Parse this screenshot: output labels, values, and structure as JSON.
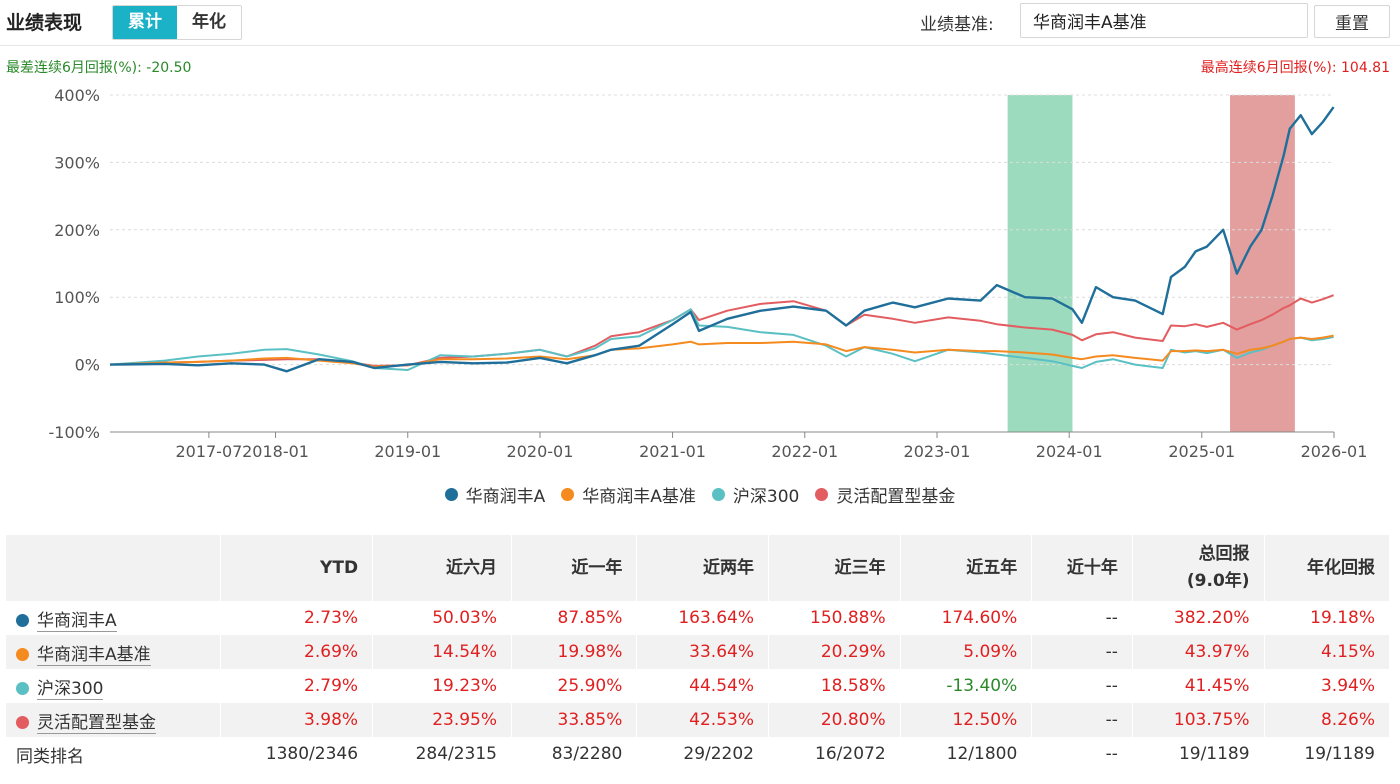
{
  "header": {
    "title": "业绩表现",
    "tabs": [
      {
        "label": "累计",
        "active": true
      },
      {
        "label": "年化",
        "active": false
      }
    ],
    "benchmark_label": "业绩基准:",
    "benchmark_value": "华商润丰A基准",
    "reset_label": "重置"
  },
  "stats": {
    "worst": "最差连续6月回报(%): -20.50",
    "best": "最高连续6月回报(%): 104.81"
  },
  "colors": {
    "fund": "#1f6f9a",
    "benchmark": "#f58a1f",
    "hs300": "#5bc0c4",
    "flex": "#e25c60",
    "worst_band": "#7ccfa8",
    "best_band": "#d46a6a",
    "positive": "#e02020",
    "negative": "#2a8a2a"
  },
  "chart_data": {
    "type": "line",
    "ylabel": "",
    "ylim": [
      -100,
      400
    ],
    "yticks": [
      -100,
      0,
      100,
      200,
      300,
      400
    ],
    "ytick_labels": [
      "-100%",
      "0%",
      "100%",
      "200%",
      "300%",
      "400%"
    ],
    "xlim": [
      "2016-10-01",
      "2026-01-01"
    ],
    "xticks": [
      {
        "date": "2017-07-01",
        "label": "2017-07"
      },
      {
        "date": "2018-01-01",
        "label": "2018-01"
      },
      {
        "date": "2019-01-01",
        "label": "2019-01"
      },
      {
        "date": "2020-01-01",
        "label": "2020-01"
      },
      {
        "date": "2021-01-01",
        "label": "2021-01"
      },
      {
        "date": "2022-01-01",
        "label": "2022-01"
      },
      {
        "date": "2023-01-01",
        "label": "2023-01"
      },
      {
        "date": "2024-01-01",
        "label": "2024-01"
      },
      {
        "date": "2025-01-01",
        "label": "2025-01"
      },
      {
        "date": "2026-01-01",
        "label": "2026-01"
      }
    ],
    "shaded_periods": [
      {
        "kind": "worst",
        "start": "2023-07-15",
        "end": "2024-01-10"
      },
      {
        "kind": "best",
        "start": "2025-03-20",
        "end": "2025-09-15"
      }
    ],
    "series": [
      {
        "name": "华商润丰A",
        "color_key": "fund",
        "points": [
          [
            "2016-10-01",
            0
          ],
          [
            "2017-03-01",
            1
          ],
          [
            "2017-06-01",
            -1
          ],
          [
            "2017-09-01",
            2
          ],
          [
            "2017-12-01",
            0
          ],
          [
            "2018-02-01",
            -10
          ],
          [
            "2018-05-01",
            8
          ],
          [
            "2018-08-01",
            4
          ],
          [
            "2018-10-01",
            -5
          ],
          [
            "2019-01-01",
            0
          ],
          [
            "2019-04-01",
            4
          ],
          [
            "2019-07-01",
            2
          ],
          [
            "2019-10-01",
            3
          ],
          [
            "2020-01-01",
            10
          ],
          [
            "2020-03-15",
            2
          ],
          [
            "2020-06-01",
            14
          ],
          [
            "2020-07-15",
            22
          ],
          [
            "2020-10-01",
            28
          ],
          [
            "2021-01-01",
            60
          ],
          [
            "2021-02-20",
            78
          ],
          [
            "2021-03-15",
            50
          ],
          [
            "2021-06-01",
            68
          ],
          [
            "2021-09-01",
            80
          ],
          [
            "2021-12-01",
            86
          ],
          [
            "2022-03-01",
            80
          ],
          [
            "2022-04-25",
            58
          ],
          [
            "2022-06-15",
            80
          ],
          [
            "2022-09-01",
            92
          ],
          [
            "2022-11-01",
            85
          ],
          [
            "2023-02-01",
            98
          ],
          [
            "2023-05-01",
            95
          ],
          [
            "2023-06-15",
            118
          ],
          [
            "2023-09-01",
            100
          ],
          [
            "2023-11-15",
            98
          ],
          [
            "2024-01-10",
            82
          ],
          [
            "2024-02-05",
            62
          ],
          [
            "2024-03-15",
            115
          ],
          [
            "2024-05-01",
            100
          ],
          [
            "2024-07-01",
            95
          ],
          [
            "2024-09-15",
            75
          ],
          [
            "2024-10-08",
            130
          ],
          [
            "2024-11-15",
            145
          ],
          [
            "2024-12-15",
            168
          ],
          [
            "2025-01-15",
            175
          ],
          [
            "2025-03-01",
            200
          ],
          [
            "2025-04-08",
            135
          ],
          [
            "2025-05-15",
            175
          ],
          [
            "2025-06-15",
            200
          ],
          [
            "2025-07-15",
            250
          ],
          [
            "2025-08-15",
            310
          ],
          [
            "2025-09-01",
            350
          ],
          [
            "2025-10-01",
            370
          ],
          [
            "2025-11-01",
            342
          ],
          [
            "2025-12-01",
            360
          ],
          [
            "2025-12-31",
            382
          ]
        ]
      },
      {
        "name": "华商润丰A基准",
        "color_key": "benchmark",
        "points": [
          [
            "2016-10-01",
            0
          ],
          [
            "2017-03-01",
            3
          ],
          [
            "2017-06-01",
            4
          ],
          [
            "2017-09-01",
            6
          ],
          [
            "2017-12-01",
            9
          ],
          [
            "2018-02-01",
            10
          ],
          [
            "2018-05-01",
            6
          ],
          [
            "2018-08-01",
            2
          ],
          [
            "2018-10-01",
            -3
          ],
          [
            "2019-01-01",
            -1
          ],
          [
            "2019-04-01",
            8
          ],
          [
            "2019-07-01",
            8
          ],
          [
            "2019-10-01",
            9
          ],
          [
            "2020-01-01",
            12
          ],
          [
            "2020-03-15",
            8
          ],
          [
            "2020-06-01",
            14
          ],
          [
            "2020-07-15",
            22
          ],
          [
            "2020-10-01",
            24
          ],
          [
            "2021-01-01",
            30
          ],
          [
            "2021-02-20",
            34
          ],
          [
            "2021-03-15",
            30
          ],
          [
            "2021-06-01",
            32
          ],
          [
            "2021-09-01",
            32
          ],
          [
            "2021-12-01",
            34
          ],
          [
            "2022-03-01",
            30
          ],
          [
            "2022-04-25",
            20
          ],
          [
            "2022-06-15",
            26
          ],
          [
            "2022-09-01",
            22
          ],
          [
            "2022-11-01",
            18
          ],
          [
            "2023-02-01",
            22
          ],
          [
            "2023-05-01",
            20
          ],
          [
            "2023-06-15",
            20
          ],
          [
            "2023-09-01",
            18
          ],
          [
            "2023-11-15",
            15
          ],
          [
            "2024-01-10",
            10
          ],
          [
            "2024-02-05",
            8
          ],
          [
            "2024-03-15",
            12
          ],
          [
            "2024-05-01",
            14
          ],
          [
            "2024-07-01",
            10
          ],
          [
            "2024-09-15",
            6
          ],
          [
            "2024-10-08",
            20
          ],
          [
            "2024-11-15",
            20
          ],
          [
            "2024-12-15",
            21
          ],
          [
            "2025-01-15",
            20
          ],
          [
            "2025-03-01",
            22
          ],
          [
            "2025-04-08",
            16
          ],
          [
            "2025-05-15",
            22
          ],
          [
            "2025-06-15",
            24
          ],
          [
            "2025-07-15",
            28
          ],
          [
            "2025-08-15",
            34
          ],
          [
            "2025-09-01",
            38
          ],
          [
            "2025-10-01",
            40
          ],
          [
            "2025-11-01",
            38
          ],
          [
            "2025-12-01",
            40
          ],
          [
            "2025-12-31",
            43
          ]
        ]
      },
      {
        "name": "沪深300",
        "color_key": "hs300",
        "points": [
          [
            "2016-10-01",
            0
          ],
          [
            "2017-03-01",
            6
          ],
          [
            "2017-06-01",
            12
          ],
          [
            "2017-09-01",
            16
          ],
          [
            "2017-12-01",
            22
          ],
          [
            "2018-02-01",
            23
          ],
          [
            "2018-05-01",
            15
          ],
          [
            "2018-08-01",
            5
          ],
          [
            "2018-10-01",
            -5
          ],
          [
            "2019-01-01",
            -8
          ],
          [
            "2019-04-01",
            14
          ],
          [
            "2019-07-01",
            12
          ],
          [
            "2019-10-01",
            16
          ],
          [
            "2020-01-01",
            22
          ],
          [
            "2020-03-15",
            12
          ],
          [
            "2020-06-01",
            24
          ],
          [
            "2020-07-15",
            38
          ],
          [
            "2020-10-01",
            42
          ],
          [
            "2021-01-01",
            66
          ],
          [
            "2021-02-20",
            82
          ],
          [
            "2021-03-15",
            58
          ],
          [
            "2021-06-01",
            56
          ],
          [
            "2021-09-01",
            48
          ],
          [
            "2021-12-01",
            44
          ],
          [
            "2022-03-01",
            28
          ],
          [
            "2022-04-25",
            12
          ],
          [
            "2022-06-15",
            26
          ],
          [
            "2022-09-01",
            16
          ],
          [
            "2022-11-01",
            5
          ],
          [
            "2023-02-01",
            22
          ],
          [
            "2023-05-01",
            18
          ],
          [
            "2023-06-15",
            15
          ],
          [
            "2023-09-01",
            10
          ],
          [
            "2023-11-15",
            5
          ],
          [
            "2024-01-10",
            -2
          ],
          [
            "2024-02-05",
            -5
          ],
          [
            "2024-03-15",
            4
          ],
          [
            "2024-05-01",
            8
          ],
          [
            "2024-07-01",
            0
          ],
          [
            "2024-09-15",
            -5
          ],
          [
            "2024-10-08",
            22
          ],
          [
            "2024-11-15",
            18
          ],
          [
            "2024-12-15",
            20
          ],
          [
            "2025-01-15",
            17
          ],
          [
            "2025-03-01",
            22
          ],
          [
            "2025-04-08",
            10
          ],
          [
            "2025-05-15",
            18
          ],
          [
            "2025-06-15",
            22
          ],
          [
            "2025-07-15",
            28
          ],
          [
            "2025-08-15",
            34
          ],
          [
            "2025-09-01",
            38
          ],
          [
            "2025-10-01",
            40
          ],
          [
            "2025-11-01",
            36
          ],
          [
            "2025-12-01",
            38
          ],
          [
            "2025-12-31",
            41
          ]
        ]
      },
      {
        "name": "灵活配置型基金",
        "color_key": "flex",
        "points": [
          [
            "2016-10-01",
            0
          ],
          [
            "2017-03-01",
            3
          ],
          [
            "2017-06-01",
            4
          ],
          [
            "2017-09-01",
            6
          ],
          [
            "2017-12-01",
            7
          ],
          [
            "2018-02-01",
            8
          ],
          [
            "2018-05-01",
            8
          ],
          [
            "2018-08-01",
            3
          ],
          [
            "2018-10-01",
            -2
          ],
          [
            "2019-01-01",
            -1
          ],
          [
            "2019-04-01",
            10
          ],
          [
            "2019-07-01",
            12
          ],
          [
            "2019-10-01",
            16
          ],
          [
            "2020-01-01",
            22
          ],
          [
            "2020-03-15",
            12
          ],
          [
            "2020-06-01",
            28
          ],
          [
            "2020-07-15",
            42
          ],
          [
            "2020-10-01",
            48
          ],
          [
            "2021-01-01",
            66
          ],
          [
            "2021-02-20",
            82
          ],
          [
            "2021-03-15",
            66
          ],
          [
            "2021-06-01",
            80
          ],
          [
            "2021-09-01",
            90
          ],
          [
            "2021-12-01",
            94
          ],
          [
            "2022-03-01",
            80
          ],
          [
            "2022-04-25",
            58
          ],
          [
            "2022-06-15",
            74
          ],
          [
            "2022-09-01",
            68
          ],
          [
            "2022-11-01",
            62
          ],
          [
            "2023-02-01",
            70
          ],
          [
            "2023-05-01",
            65
          ],
          [
            "2023-06-15",
            60
          ],
          [
            "2023-09-01",
            55
          ],
          [
            "2023-11-15",
            52
          ],
          [
            "2024-01-10",
            44
          ],
          [
            "2024-02-05",
            36
          ],
          [
            "2024-03-15",
            45
          ],
          [
            "2024-05-01",
            48
          ],
          [
            "2024-07-01",
            40
          ],
          [
            "2024-09-15",
            35
          ],
          [
            "2024-10-08",
            58
          ],
          [
            "2024-11-15",
            57
          ],
          [
            "2024-12-15",
            60
          ],
          [
            "2025-01-15",
            56
          ],
          [
            "2025-03-01",
            62
          ],
          [
            "2025-04-08",
            52
          ],
          [
            "2025-05-15",
            60
          ],
          [
            "2025-06-15",
            66
          ],
          [
            "2025-07-15",
            74
          ],
          [
            "2025-08-15",
            84
          ],
          [
            "2025-09-01",
            88
          ],
          [
            "2025-10-01",
            98
          ],
          [
            "2025-11-01",
            92
          ],
          [
            "2025-12-01",
            97
          ],
          [
            "2025-12-31",
            103
          ]
        ]
      }
    ]
  },
  "table": {
    "headers": [
      "",
      "YTD",
      "近六月",
      "近一年",
      "近两年",
      "近三年",
      "近五年",
      "近十年",
      "总回报\n(9.0年)",
      "年化回报"
    ],
    "rows": [
      {
        "name": "华商润丰A",
        "color_key": "fund",
        "values": [
          "2.73%",
          "50.03%",
          "87.85%",
          "163.64%",
          "150.88%",
          "174.60%",
          "--",
          "382.20%",
          "19.18%"
        ]
      },
      {
        "name": "华商润丰A基准",
        "color_key": "benchmark",
        "values": [
          "2.69%",
          "14.54%",
          "19.98%",
          "33.64%",
          "20.29%",
          "5.09%",
          "--",
          "43.97%",
          "4.15%"
        ]
      },
      {
        "name": "沪深300",
        "color_key": "hs300",
        "values": [
          "2.79%",
          "19.23%",
          "25.90%",
          "44.54%",
          "18.58%",
          "-13.40%",
          "--",
          "41.45%",
          "3.94%"
        ]
      },
      {
        "name": "灵活配置型基金",
        "color_key": "flex",
        "values": [
          "3.98%",
          "23.95%",
          "33.85%",
          "42.53%",
          "20.80%",
          "12.50%",
          "--",
          "103.75%",
          "8.26%"
        ]
      }
    ],
    "rank_row": {
      "name": "同类排名",
      "values": [
        "1380/2346",
        "284/2315",
        "83/2280",
        "29/2202",
        "16/2072",
        "12/1800",
        "--",
        "19/1189",
        "19/1189"
      ]
    }
  }
}
